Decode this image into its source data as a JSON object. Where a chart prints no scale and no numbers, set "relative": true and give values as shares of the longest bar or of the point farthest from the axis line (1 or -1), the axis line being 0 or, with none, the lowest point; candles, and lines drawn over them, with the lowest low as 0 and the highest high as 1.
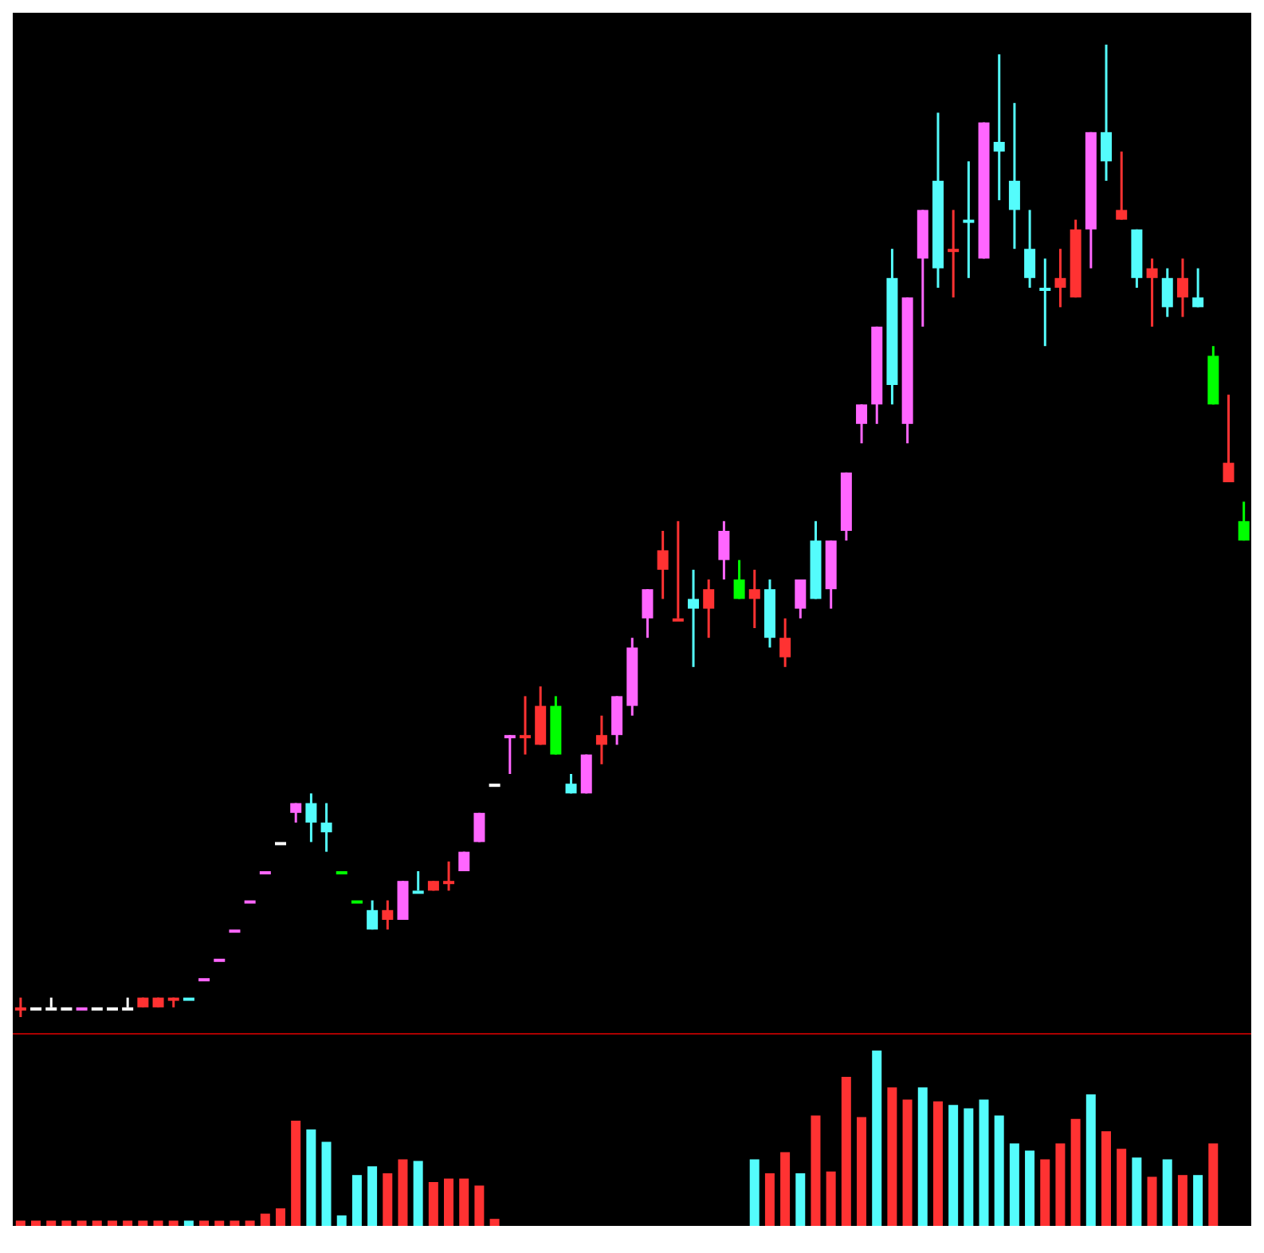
{
  "chart_data": [
    {
      "type": "candlestick",
      "relative": true,
      "categories": [
        null,
        null,
        null,
        null,
        null,
        null,
        null,
        null,
        null,
        null,
        null,
        null,
        null,
        null,
        null,
        null,
        null,
        null,
        null,
        null,
        null,
        null,
        null,
        null,
        null,
        null,
        null,
        null,
        null,
        null,
        null,
        null,
        null,
        null,
        null,
        null,
        null,
        null,
        null,
        null,
        null,
        null,
        null,
        null,
        null,
        null,
        null,
        null,
        null,
        null,
        null,
        null,
        null,
        null,
        null,
        null,
        null,
        null,
        null,
        null,
        null,
        null,
        null,
        null,
        null,
        null,
        null,
        null,
        null,
        null,
        null,
        null,
        null,
        null,
        null,
        null,
        null,
        null,
        null,
        null,
        null
      ],
      "ohlc": [
        [
          0.01,
          0.02,
          0,
          0.01
        ],
        [
          0.01,
          0.01,
          0.01,
          0.01
        ],
        [
          0.01,
          0.02,
          0.01,
          0.01
        ],
        [
          0.01,
          0.01,
          0.01,
          0.01
        ],
        [
          0.01,
          0.01,
          0.01,
          0.01
        ],
        [
          0.01,
          0.01,
          0.01,
          0.01
        ],
        [
          0.01,
          0.01,
          0.01,
          0.01
        ],
        [
          0.01,
          0.02,
          0.01,
          0.01
        ],
        [
          0.01,
          0.02,
          0.01,
          0.02
        ],
        [
          0.01,
          0.02,
          0.01,
          0.02
        ],
        [
          0.02,
          0.02,
          0.01,
          0.02
        ],
        [
          0.02,
          0.02,
          0.02,
          0.02
        ],
        [
          0.04,
          0.04,
          0.04,
          0.04
        ],
        [
          0.06,
          0.06,
          0.06,
          0.06
        ],
        [
          0.09,
          0.09,
          0.09,
          0.09
        ],
        [
          0.12,
          0.12,
          0.12,
          0.12
        ],
        [
          0.15,
          0.15,
          0.15,
          0.15
        ],
        [
          0.18,
          0.18,
          0.18,
          0.18
        ],
        [
          0.21,
          0.22,
          0.2,
          0.22
        ],
        [
          0.22,
          0.23,
          0.18,
          0.2
        ],
        [
          0.2,
          0.22,
          0.17,
          0.19
        ],
        [
          0.15,
          0.15,
          0.15,
          0.15
        ],
        [
          0.12,
          0.12,
          0.12,
          0.12
        ],
        [
          0.11,
          0.12,
          0.09,
          0.09
        ],
        [
          0.1,
          0.12,
          0.09,
          0.11
        ],
        [
          0.1,
          0.14,
          0.1,
          0.14
        ],
        [
          0.13,
          0.15,
          0.13,
          0.13
        ],
        [
          0.13,
          0.14,
          0.13,
          0.14
        ],
        [
          0.14,
          0.16,
          0.13,
          0.14
        ],
        [
          0.15,
          0.17,
          0.15,
          0.17
        ],
        [
          0.18,
          0.21,
          0.18,
          0.21
        ],
        [
          0.24,
          0.24,
          0.24,
          0.24
        ],
        [
          0.29,
          0.29,
          0.25,
          0.29
        ],
        [
          0.29,
          0.33,
          0.27,
          0.29
        ],
        [
          0.28,
          0.34,
          0.28,
          0.32
        ],
        [
          0.32,
          0.33,
          0.27,
          0.27
        ],
        [
          0.24,
          0.25,
          0.23,
          0.23
        ],
        [
          0.23,
          0.27,
          0.23,
          0.27
        ],
        [
          0.28,
          0.31,
          0.26,
          0.29
        ],
        [
          0.29,
          0.33,
          0.28,
          0.33
        ],
        [
          0.32,
          0.39,
          0.31,
          0.38
        ],
        [
          0.41,
          0.44,
          0.39,
          0.44
        ],
        [
          0.46,
          0.5,
          0.43,
          0.48
        ],
        [
          0.41,
          0.51,
          0.41,
          0.41
        ],
        [
          0.43,
          0.46,
          0.36,
          0.42
        ],
        [
          0.42,
          0.45,
          0.39,
          0.44
        ],
        [
          0.47,
          0.51,
          0.45,
          0.5
        ],
        [
          0.45,
          0.47,
          0.43,
          0.43
        ],
        [
          0.43,
          0.46,
          0.4,
          0.44
        ],
        [
          0.44,
          0.45,
          0.38,
          0.39
        ],
        [
          0.37,
          0.41,
          0.36,
          0.39
        ],
        [
          0.42,
          0.45,
          0.41,
          0.45
        ],
        [
          0.49,
          0.51,
          0.43,
          0.43
        ],
        [
          0.44,
          0.49,
          0.42,
          0.49
        ],
        [
          0.5,
          0.56,
          0.49,
          0.56
        ],
        [
          0.61,
          0.63,
          0.59,
          0.63
        ],
        [
          0.63,
          0.71,
          0.61,
          0.71
        ],
        [
          0.76,
          0.79,
          0.63,
          0.65
        ],
        [
          0.61,
          0.74,
          0.59,
          0.74
        ],
        [
          0.78,
          0.83,
          0.71,
          0.83
        ],
        [
          0.86,
          0.93,
          0.75,
          0.77
        ],
        [
          0.79,
          0.83,
          0.74,
          0.79
        ],
        [
          0.82,
          0.88,
          0.76,
          0.82
        ],
        [
          0.78,
          0.92,
          0.78,
          0.92
        ],
        [
          0.9,
          0.99,
          0.84,
          0.89
        ],
        [
          0.86,
          0.94,
          0.79,
          0.83
        ],
        [
          0.79,
          0.83,
          0.75,
          0.76
        ],
        [
          0.75,
          0.78,
          0.69,
          0.75
        ],
        [
          0.75,
          0.79,
          0.73,
          0.76
        ],
        [
          0.74,
          0.82,
          0.74,
          0.81
        ],
        [
          0.81,
          0.91,
          0.77,
          0.91
        ],
        [
          0.91,
          1,
          0.86,
          0.88
        ],
        [
          0.82,
          0.89,
          0.82,
          0.83
        ],
        [
          0.81,
          0.81,
          0.75,
          0.76
        ],
        [
          0.76,
          0.78,
          0.71,
          0.77
        ],
        [
          0.76,
          0.77,
          0.72,
          0.73
        ],
        [
          0.74,
          0.78,
          0.72,
          0.76
        ],
        [
          0.74,
          0.77,
          0.73,
          0.73
        ],
        [
          0.68,
          0.69,
          0.63,
          0.63
        ],
        [
          0.55,
          0.64,
          0.55,
          0.57
        ],
        [
          0.51,
          0.53,
          0.49,
          0.49
        ]
      ],
      "colors": [
        "#ff3232",
        "#ffffff",
        "#ffffff",
        "#ffffff",
        "#ff66ff",
        "#ffffff",
        "#ffffff",
        "#ffffff",
        "#ff3232",
        "#ff3232",
        "#ff3232",
        "#54fcfc",
        "#ff66ff",
        "#ff66ff",
        "#ff66ff",
        "#ff66ff",
        "#ff66ff",
        "#ffffff",
        "#ff66ff",
        "#54fcfc",
        "#54fcfc",
        "#00ff00",
        "#00ff00",
        "#54fcfc",
        "#ff3232",
        "#ff66ff",
        "#54fcfc",
        "#ff3232",
        "#ff3232",
        "#ff66ff",
        "#ff66ff",
        "#ffffff",
        "#ff66ff",
        "#ff3232",
        "#ff3232",
        "#00ff00",
        "#54fcfc",
        "#ff66ff",
        "#ff3232",
        "#ff66ff",
        "#ff66ff",
        "#ff66ff",
        "#ff3232",
        "#ff3232",
        "#54fcfc",
        "#ff3232",
        "#ff66ff",
        "#00ff00",
        "#ff3232",
        "#54fcfc",
        "#ff3232",
        "#ff66ff",
        "#54fcfc",
        "#ff66ff",
        "#ff66ff",
        "#ff66ff",
        "#ff66ff",
        "#54fcfc",
        "#ff66ff",
        "#ff66ff",
        "#54fcfc",
        "#ff3232",
        "#54fcfc",
        "#ff66ff",
        "#54fcfc",
        "#54fcfc",
        "#54fcfc",
        "#54fcfc",
        "#ff3232",
        "#ff3232",
        "#ff66ff",
        "#54fcfc",
        "#ff3232",
        "#54fcfc",
        "#ff3232",
        "#54fcfc",
        "#ff3232",
        "#54fcfc",
        "#00ff00",
        "#ff3232",
        "#00ff00"
      ]
    },
    {
      "type": "bar",
      "relative": true,
      "categories": [
        null,
        null,
        null,
        null,
        null,
        null,
        null,
        null,
        null,
        null,
        null,
        null,
        null,
        null,
        null,
        null,
        null,
        null,
        null,
        null,
        null,
        null,
        null,
        null,
        null,
        null,
        null,
        null,
        null,
        null,
        null,
        null,
        null,
        null,
        null,
        null,
        null,
        null,
        null,
        null,
        null,
        null,
        null,
        null,
        null,
        null,
        null,
        null,
        null,
        null,
        null,
        null,
        null,
        null,
        null,
        null,
        null,
        null,
        null,
        null,
        null,
        null,
        null,
        null,
        null,
        null,
        null,
        null,
        null,
        null,
        null,
        null,
        null,
        null,
        null,
        null,
        null,
        null,
        null,
        null,
        null
      ],
      "values": [
        0.03,
        0.03,
        0.03,
        0.03,
        0.03,
        0.03,
        0.03,
        0.03,
        0.03,
        0.03,
        0.03,
        0.03,
        0.03,
        0.03,
        0.03,
        0.03,
        0.07,
        0.1,
        0.6,
        0.55,
        0.48,
        0.06,
        0.29,
        0.34,
        0.3,
        0.38,
        0.37,
        0.25,
        0.27,
        0.27,
        0.23,
        0.04,
        null,
        null,
        null,
        null,
        null,
        null,
        null,
        null,
        null,
        null,
        null,
        null,
        null,
        null,
        null,
        null,
        0.38,
        0.3,
        0.42,
        0.3,
        0.63,
        0.31,
        0.85,
        0.62,
        1,
        0.79,
        0.72,
        0.79,
        0.71,
        0.69,
        0.67,
        0.72,
        0.63,
        0.47,
        0.43,
        0.38,
        0.47,
        0.61,
        0.75,
        0.54,
        0.44,
        0.39,
        0.28,
        0.38,
        0.29,
        0.29,
        0.47,
        null,
        null
      ],
      "colors": [
        "#ff3232",
        "#ff3232",
        "#ff3232",
        "#ff3232",
        "#ff3232",
        "#ff3232",
        "#ff3232",
        "#ff3232",
        "#ff3232",
        "#ff3232",
        "#ff3232",
        "#54fcfc",
        "#ff3232",
        "#ff3232",
        "#ff3232",
        "#ff3232",
        "#ff3232",
        "#ff3232",
        "#ff3232",
        "#54fcfc",
        "#54fcfc",
        "#54fcfc",
        "#54fcfc",
        "#54fcfc",
        "#ff3232",
        "#ff3232",
        "#54fcfc",
        "#ff3232",
        "#ff3232",
        "#ff3232",
        "#ff3232",
        "#ff3232",
        "#ff3232",
        "#ff3232",
        "#ff3232",
        "#54fcfc",
        "#54fcfc",
        "#ff3232",
        "#ff3232",
        "#ff3232",
        "#ff3232",
        "#ff3232",
        "#ff3232",
        "#ff3232",
        "#54fcfc",
        "#ff3232",
        "#ff3232",
        "#54fcfc",
        "#54fcfc",
        "#ff3232",
        "#ff3232",
        "#54fcfc",
        "#ff3232",
        "#ff3232",
        "#ff3232",
        "#ff3232",
        "#54fcfc",
        "#ff3232",
        "#ff3232",
        "#54fcfc",
        "#ff3232",
        "#54fcfc",
        "#54fcfc",
        "#54fcfc",
        "#54fcfc",
        "#54fcfc",
        "#54fcfc",
        "#ff3232",
        "#ff3232",
        "#ff3232",
        "#54fcfc",
        "#ff3232",
        "#ff3232",
        "#54fcfc",
        "#ff3232",
        "#54fcfc",
        "#ff3232",
        "#54fcfc",
        "#ff3232",
        "#ff3232",
        "#54fcfc"
      ]
    }
  ]
}
